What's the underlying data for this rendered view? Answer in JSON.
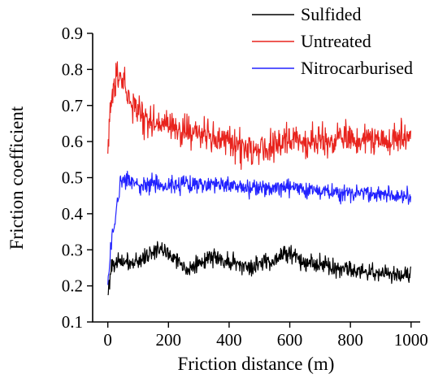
{
  "chart_data": {
    "type": "line",
    "xlabel": "Friction distance (m)",
    "ylabel": "Friction coefficient",
    "xlim": [
      -50,
      1030
    ],
    "ylim": [
      0.1,
      0.9
    ],
    "xticks": [
      0,
      200,
      400,
      600,
      800,
      1000
    ],
    "yticks": [
      0.1,
      0.2,
      0.3,
      0.4,
      0.5,
      0.6,
      0.7,
      0.8,
      0.9
    ],
    "xtick_labels": [
      "0",
      "200",
      "400",
      "600",
      "800",
      "1000"
    ],
    "ytick_labels": [
      "0.1",
      "0.2",
      "0.3",
      "0.4",
      "0.5",
      "0.6",
      "0.7",
      "0.8",
      "0.9"
    ],
    "grid": false,
    "legend_position": "top-right",
    "series": [
      {
        "name": "Sulfided",
        "color": "#000000",
        "x": [
          0,
          10,
          20,
          40,
          60,
          80,
          100,
          120,
          140,
          160,
          180,
          200,
          220,
          240,
          260,
          280,
          300,
          320,
          340,
          360,
          380,
          400,
          420,
          440,
          460,
          480,
          500,
          520,
          540,
          560,
          580,
          600,
          620,
          640,
          660,
          680,
          700,
          720,
          740,
          760,
          780,
          800,
          820,
          840,
          860,
          880,
          900,
          920,
          940,
          960,
          980,
          1000
        ],
        "y": [
          0.17,
          0.25,
          0.27,
          0.26,
          0.27,
          0.26,
          0.27,
          0.28,
          0.29,
          0.3,
          0.3,
          0.29,
          0.28,
          0.26,
          0.25,
          0.25,
          0.26,
          0.27,
          0.28,
          0.28,
          0.27,
          0.27,
          0.26,
          0.26,
          0.25,
          0.25,
          0.26,
          0.27,
          0.27,
          0.28,
          0.29,
          0.29,
          0.28,
          0.27,
          0.27,
          0.26,
          0.26,
          0.26,
          0.25,
          0.25,
          0.25,
          0.25,
          0.24,
          0.24,
          0.24,
          0.24,
          0.24,
          0.23,
          0.23,
          0.23,
          0.23,
          0.23
        ],
        "noise": 0.012
      },
      {
        "name": "Untreated",
        "color": "#e8231d",
        "x": [
          0,
          10,
          20,
          30,
          40,
          50,
          60,
          80,
          100,
          120,
          140,
          160,
          180,
          200,
          220,
          240,
          260,
          280,
          300,
          320,
          340,
          360,
          380,
          400,
          420,
          440,
          460,
          480,
          500,
          520,
          540,
          560,
          580,
          600,
          620,
          640,
          660,
          680,
          700,
          720,
          740,
          760,
          780,
          800,
          820,
          840,
          860,
          880,
          900,
          920,
          940,
          960,
          980,
          1000
        ],
        "y": [
          0.56,
          0.7,
          0.76,
          0.79,
          0.8,
          0.77,
          0.74,
          0.7,
          0.68,
          0.66,
          0.65,
          0.65,
          0.65,
          0.64,
          0.64,
          0.63,
          0.63,
          0.63,
          0.62,
          0.62,
          0.62,
          0.61,
          0.6,
          0.6,
          0.59,
          0.58,
          0.58,
          0.58,
          0.59,
          0.59,
          0.59,
          0.6,
          0.6,
          0.6,
          0.6,
          0.6,
          0.6,
          0.61,
          0.61,
          0.6,
          0.6,
          0.61,
          0.61,
          0.61,
          0.6,
          0.6,
          0.61,
          0.61,
          0.61,
          0.6,
          0.6,
          0.6,
          0.61,
          0.61
        ],
        "noise": 0.022
      },
      {
        "name": "Nitrocarburised",
        "color": "#2222ff",
        "x": [
          0,
          5,
          10,
          20,
          30,
          40,
          50,
          60,
          80,
          100,
          150,
          200,
          250,
          300,
          350,
          400,
          450,
          500,
          550,
          600,
          650,
          700,
          750,
          790,
          800,
          810,
          850,
          900,
          950,
          1000
        ],
        "y": [
          0.2,
          0.26,
          0.3,
          0.36,
          0.42,
          0.47,
          0.49,
          0.49,
          0.49,
          0.48,
          0.48,
          0.48,
          0.48,
          0.48,
          0.48,
          0.48,
          0.47,
          0.47,
          0.47,
          0.47,
          0.47,
          0.46,
          0.46,
          0.46,
          0.45,
          0.46,
          0.46,
          0.45,
          0.45,
          0.45
        ],
        "noise": 0.012
      }
    ]
  }
}
